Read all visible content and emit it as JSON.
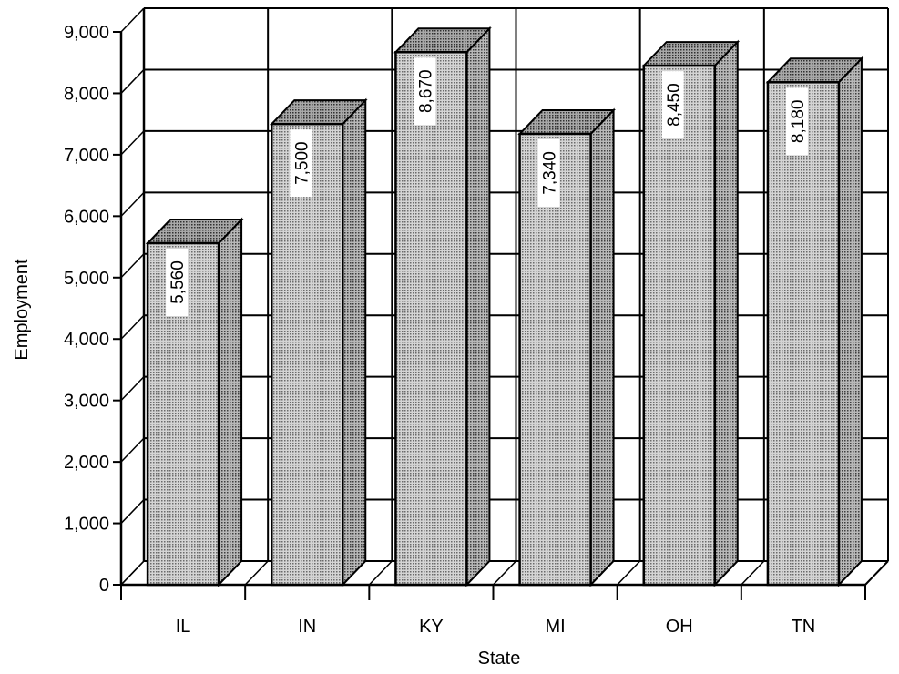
{
  "chart_data": {
    "type": "bar",
    "categories": [
      "IL",
      "IN",
      "KY",
      "MI",
      "OH",
      "TN"
    ],
    "values": [
      5560,
      7500,
      8670,
      7340,
      8450,
      8180
    ],
    "value_labels": [
      "5,560",
      "7,500",
      "8,670",
      "7,340",
      "8,450",
      "8,180"
    ],
    "xlabel": "State",
    "ylabel": "Employment",
    "ylim": [
      0,
      9000
    ],
    "yticks": [
      0,
      1000,
      2000,
      3000,
      4000,
      5000,
      6000,
      7000,
      8000,
      9000
    ],
    "ytick_labels": [
      "0",
      "1,000",
      "2,000",
      "3,000",
      "4,000",
      "5,000",
      "6,000",
      "7,000",
      "8,000",
      "9,000"
    ],
    "grid": true,
    "style": "3d",
    "bar_fill": "#b9b9b9",
    "bar_side_fill": "#9a9a9a",
    "bar_top_fill": "#8e8e8e"
  }
}
